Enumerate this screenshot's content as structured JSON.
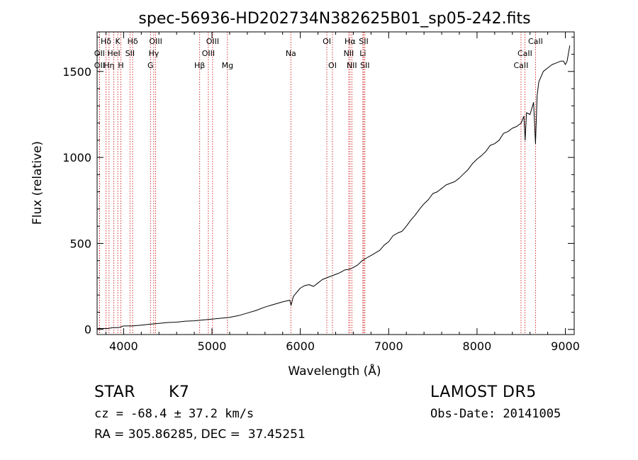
{
  "chart_data": {
    "type": "line",
    "title": "spec-56936-HD202734N382625B01_sp05-242.fits",
    "xlabel": "Wavelength (Å)",
    "ylabel": "Flux (relative)",
    "xlim": [
      3700,
      9100
    ],
    "ylim": [
      -30,
      1730
    ],
    "xticks": [
      4000,
      5000,
      6000,
      7000,
      8000,
      9000
    ],
    "yticks": [
      0,
      500,
      1000,
      1500
    ],
    "grid": false,
    "series": [
      {
        "x": [
          3700,
          3760,
          3820,
          3880,
          3940,
          4000,
          4100,
          4200,
          4300,
          4400,
          4500,
          4600,
          4700,
          4800,
          4900,
          5000,
          5100,
          5200,
          5300,
          5400,
          5500,
          5600,
          5700,
          5800,
          5880,
          5895,
          5920,
          5950,
          6000,
          6050,
          6100,
          6150,
          6200,
          6250,
          6300,
          6350,
          6400,
          6450,
          6500,
          6560,
          6600,
          6650,
          6700,
          6750,
          6800,
          6850,
          6900,
          6950,
          7000,
          7050,
          7100,
          7150,
          7200,
          7250,
          7300,
          7350,
          7400,
          7450,
          7500,
          7550,
          7600,
          7650,
          7700,
          7750,
          7800,
          7850,
          7900,
          7950,
          8000,
          8050,
          8100,
          8150,
          8200,
          8250,
          8300,
          8350,
          8400,
          8450,
          8500,
          8530,
          8545,
          8560,
          8600,
          8640,
          8662,
          8680,
          8700,
          8750,
          8800,
          8850,
          8900,
          8950,
          8980,
          9000,
          9020,
          9040,
          9050
        ],
        "y": [
          5,
          5,
          5,
          10,
          10,
          20,
          20,
          25,
          30,
          35,
          40,
          42,
          48,
          50,
          55,
          60,
          65,
          70,
          80,
          95,
          110,
          130,
          145,
          160,
          170,
          140,
          190,
          210,
          240,
          255,
          260,
          250,
          270,
          290,
          300,
          310,
          320,
          330,
          345,
          350,
          360,
          375,
          400,
          415,
          430,
          445,
          460,
          490,
          510,
          545,
          560,
          570,
          600,
          635,
          665,
          700,
          730,
          755,
          790,
          800,
          820,
          840,
          850,
          860,
          880,
          905,
          930,
          965,
          990,
          1010,
          1035,
          1070,
          1080,
          1100,
          1140,
          1150,
          1170,
          1180,
          1200,
          1240,
          1100,
          1260,
          1250,
          1320,
          1080,
          1360,
          1440,
          1500,
          1520,
          1540,
          1550,
          1560,
          1560,
          1540,
          1560,
          1620,
          1650
        ]
      }
    ],
    "line_marks": [
      {
        "label": "Hδ",
        "x": 3800,
        "row": 0
      },
      {
        "label": "K",
        "x": 3934,
        "row": 0
      },
      {
        "label": "Hδ",
        "x": 4102,
        "row": 0
      },
      {
        "label": "OIII",
        "x": 4363,
        "row": 0
      },
      {
        "label": "OIII",
        "x": 5007,
        "row": 0
      },
      {
        "label": "OI",
        "x": 6300,
        "row": 0
      },
      {
        "label": "Hα",
        "x": 6563,
        "row": 0
      },
      {
        "label": "SII",
        "x": 6717,
        "row": 0
      },
      {
        "label": "CaII",
        "x": 8662,
        "row": 0
      },
      {
        "label": "OII",
        "x": 3727,
        "row": 1
      },
      {
        "label": "HeI",
        "x": 3889,
        "row": 1
      },
      {
        "label": "SII",
        "x": 4072,
        "row": 1
      },
      {
        "label": "Hγ",
        "x": 4341,
        "row": 1
      },
      {
        "label": "OIII",
        "x": 4959,
        "row": 1
      },
      {
        "label": "Na",
        "x": 5893,
        "row": 1
      },
      {
        "label": "NII",
        "x": 6548,
        "row": 1
      },
      {
        "label": "Li",
        "x": 6708,
        "row": 1
      },
      {
        "label": "CaII",
        "x": 8542,
        "row": 1
      },
      {
        "label": "OII",
        "x": 3727,
        "row": 2
      },
      {
        "label": "Hη",
        "x": 3835,
        "row": 2
      },
      {
        "label": "H",
        "x": 3969,
        "row": 2
      },
      {
        "label": "G",
        "x": 4304,
        "row": 2
      },
      {
        "label": "Hβ",
        "x": 4861,
        "row": 2
      },
      {
        "label": "Mg",
        "x": 5175,
        "row": 2
      },
      {
        "label": "OI",
        "x": 6364,
        "row": 2
      },
      {
        "label": "NII",
        "x": 6583,
        "row": 2
      },
      {
        "label": "SII",
        "x": 6731,
        "row": 2
      },
      {
        "label": "CaII",
        "x": 8498,
        "row": 2
      }
    ],
    "colors": {
      "spectrum": "#000000",
      "line_marker": "#cc0000"
    }
  },
  "info": {
    "object_class": "STAR",
    "subclass": "K7",
    "cz": "cz = -68.4 ± 37.2 km/s",
    "coords": "RA = 305.86285, DEC =  37.45251",
    "survey": "LAMOST DR5",
    "obs_date": "Obs-Date: 20141005"
  }
}
